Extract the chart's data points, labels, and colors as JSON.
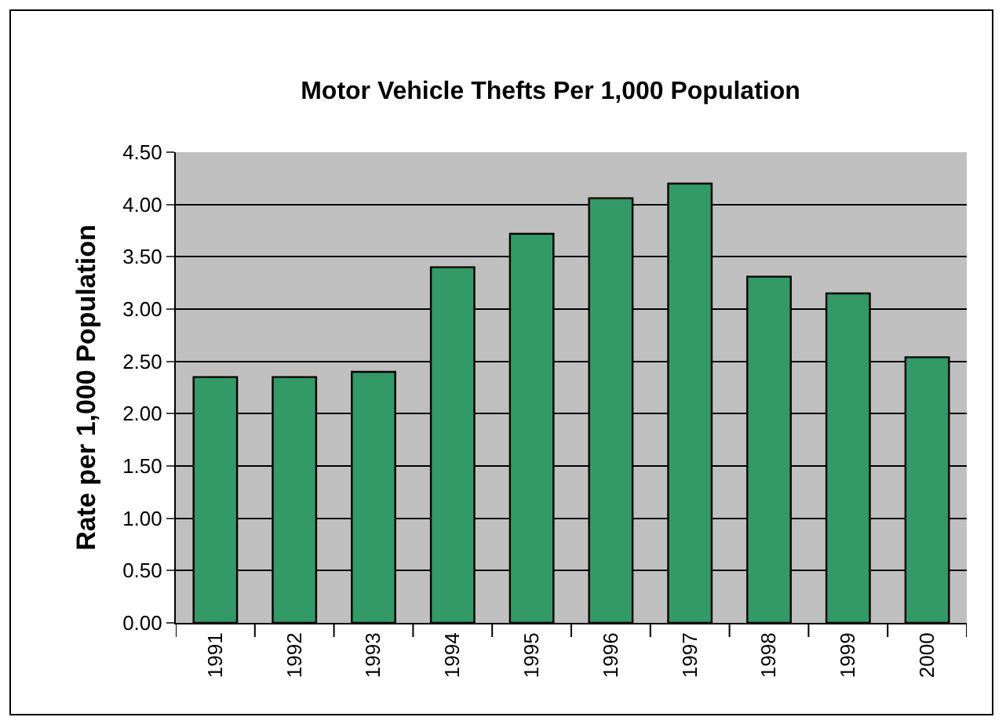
{
  "chart_data": {
    "type": "bar",
    "title": "Motor Vehicle Thefts Per 1,000 Population",
    "ylabel": "Rate per 1,000 Population",
    "categories": [
      "1991",
      "1992",
      "1993",
      "1994",
      "1995",
      "1996",
      "1997",
      "1998",
      "1999",
      "2000"
    ],
    "values": [
      2.35,
      2.35,
      2.4,
      3.4,
      3.72,
      4.06,
      4.2,
      3.31,
      3.15,
      2.54
    ],
    "color": "#339966",
    "ylim": [
      0,
      4.5
    ],
    "yticks": [
      {
        "value": 0,
        "label": "0.00"
      },
      {
        "value": 0.5,
        "label": "0.50"
      },
      {
        "value": 1,
        "label": "1.00"
      },
      {
        "value": 1.5,
        "label": "1.50"
      },
      {
        "value": 2,
        "label": "2.00"
      },
      {
        "value": 2.5,
        "label": "2.50"
      },
      {
        "value": 3,
        "label": "3.00"
      },
      {
        "value": 3.5,
        "label": "3.50"
      },
      {
        "value": 4,
        "label": "4.00"
      },
      {
        "value": 4.5,
        "label": "4.50"
      }
    ],
    "grid": "y",
    "legend": false
  }
}
